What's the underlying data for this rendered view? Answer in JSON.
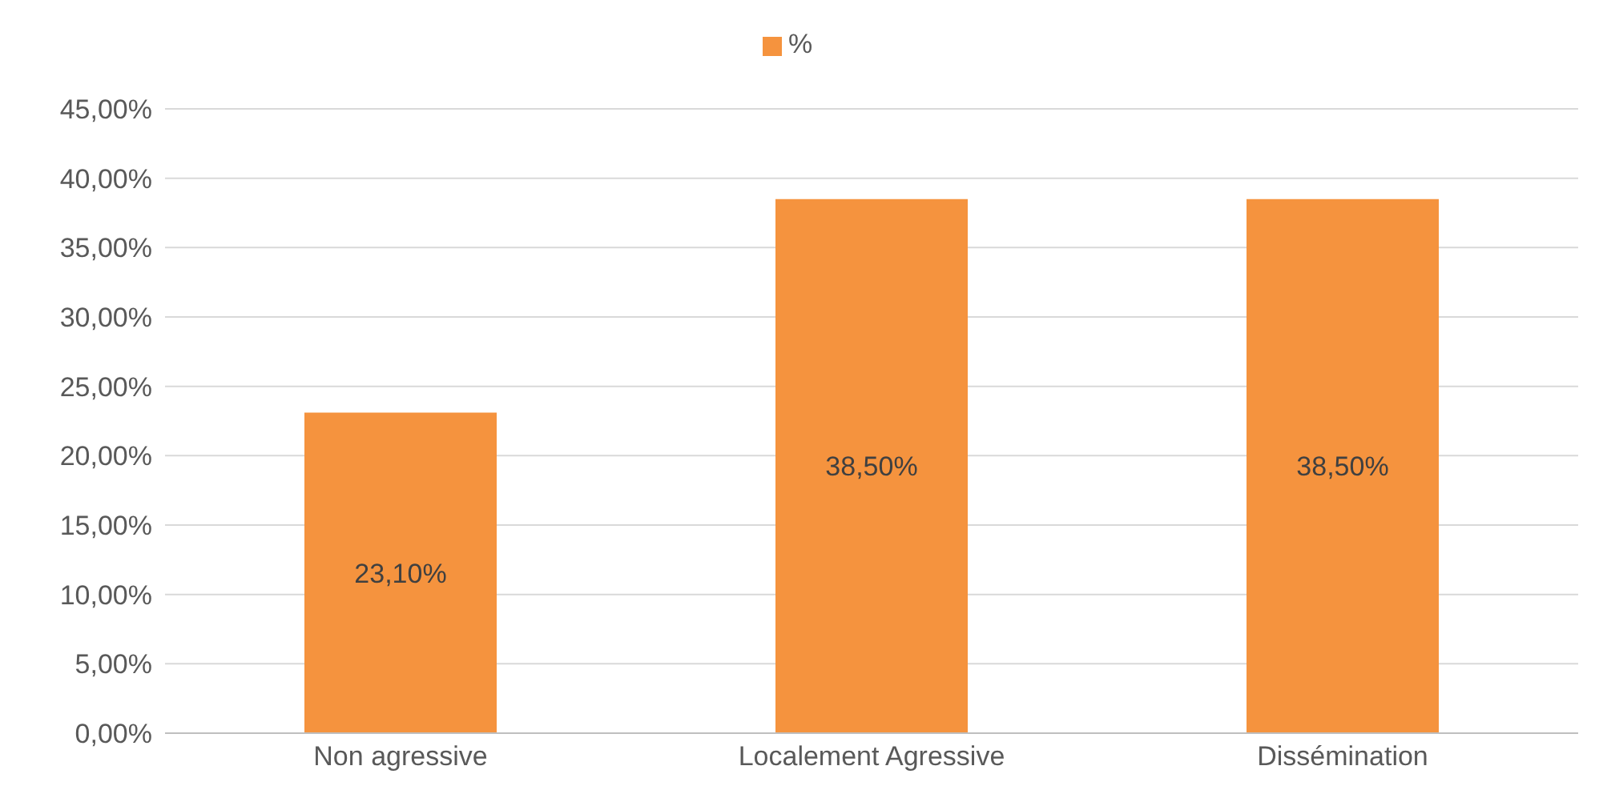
{
  "chart_data": {
    "type": "bar",
    "categories": [
      "Non agressive",
      "Localement Agressive",
      "Dissémination"
    ],
    "series": [
      {
        "name": "%",
        "color": "#f5933e",
        "values": [
          23.1,
          38.5,
          38.5
        ],
        "value_labels": [
          "23,10%",
          "38,50%",
          "38,50%"
        ]
      }
    ],
    "ylim": [
      0,
      45
    ],
    "yticks": [
      {
        "value": 0,
        "label": "0,00%"
      },
      {
        "value": 5,
        "label": "5,00%"
      },
      {
        "value": 10,
        "label": "10,00%"
      },
      {
        "value": 15,
        "label": "15,00%"
      },
      {
        "value": 20,
        "label": "20,00%"
      },
      {
        "value": 25,
        "label": "25,00%"
      },
      {
        "value": 30,
        "label": "30,00%"
      },
      {
        "value": 35,
        "label": "35,00%"
      },
      {
        "value": 40,
        "label": "40,00%"
      },
      {
        "value": 45,
        "label": "45,00%"
      }
    ],
    "grid": "y",
    "legend": "top"
  }
}
